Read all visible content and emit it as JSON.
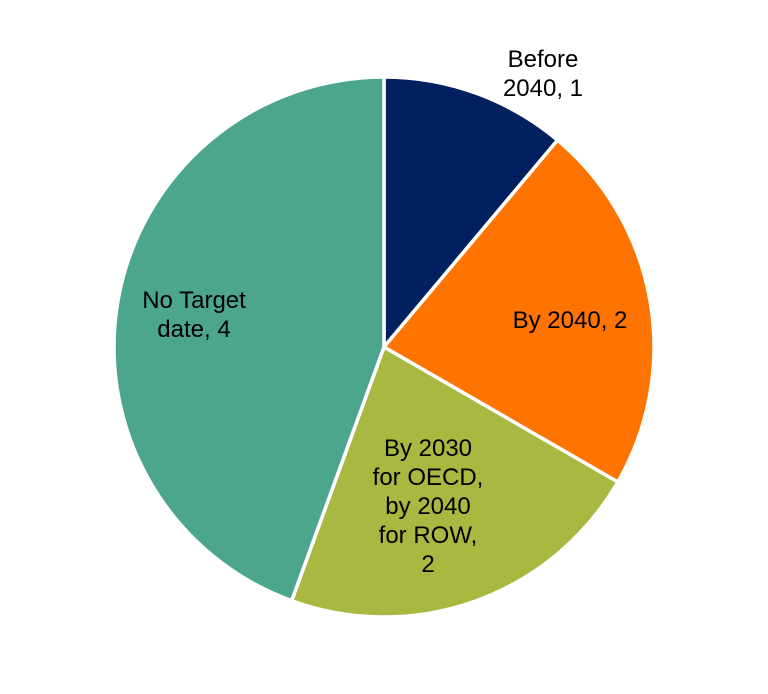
{
  "chart_data": {
    "type": "pie",
    "start_angle_deg": 0,
    "direction": "clockwise",
    "slices": [
      {
        "label": "Before 2040, 1",
        "label_lines": [
          "Before",
          "2040, 1"
        ],
        "value": 1,
        "color": "#002060",
        "label_color": "#000000"
      },
      {
        "label": "By 2040, 2",
        "label_lines": [
          "By 2040, 2"
        ],
        "value": 2,
        "color": "#FF7400",
        "label_color": "#000000"
      },
      {
        "label": "By 2030 for OECD, by 2040 for ROW, 2",
        "label_lines": [
          "By 2030",
          "for OECD,",
          "by 2040",
          "for ROW,",
          "2"
        ],
        "value": 2,
        "color": "#A8B840",
        "label_color": "#000000"
      },
      {
        "label": "No Target date, 4",
        "label_lines": [
          "No Target",
          "date, 4"
        ],
        "value": 4,
        "color": "#4CA68E",
        "label_color": "#000000"
      }
    ]
  }
}
